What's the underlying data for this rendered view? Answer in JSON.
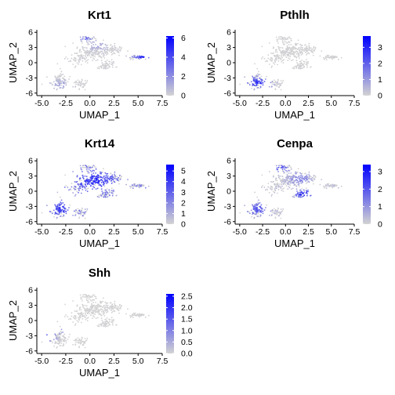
{
  "chart_data": [
    {
      "type": "scatter",
      "title": "Krt1",
      "xlabel": "UMAP_1",
      "ylabel": "UMAP_2",
      "xlim": [
        -5.5,
        7.5
      ],
      "ylim": [
        -6.5,
        6.5
      ],
      "xticks": [
        -5.0,
        -2.5,
        0.0,
        2.5,
        5.0,
        7.5
      ],
      "xtick_labels": [
        "-5.0",
        "-2.5",
        "0.0",
        "2.5",
        "5.0",
        "7.5"
      ],
      "yticks": [
        -6,
        -3,
        0,
        3,
        6
      ],
      "ytick_labels": [
        "-6",
        "-3",
        "0",
        "3",
        "6"
      ],
      "legend": {
        "type": "colorbar",
        "placement": "right",
        "min": 0,
        "max": 6.2,
        "ticks": [
          0,
          2,
          4,
          6
        ],
        "tick_labels": [
          "0",
          "2",
          "4",
          "6"
        ],
        "low_color": "#d3d3d3",
        "high_color": "#0000ff"
      },
      "expression_hotspots": [
        {
          "x": 5.5,
          "y": 1.2,
          "sx": 1.0,
          "sy": 0.35,
          "level": 5.5
        },
        {
          "x": 3.2,
          "y": 1.0,
          "sx": 0.6,
          "sy": 0.35,
          "level": 3.0
        },
        {
          "x": -0.5,
          "y": 4.8,
          "sx": 0.7,
          "sy": 0.5,
          "level": 3.5
        },
        {
          "x": -3.0,
          "y": -4.5,
          "sx": 1.0,
          "sy": 1.0,
          "level": 1.5
        },
        {
          "x": 0.8,
          "y": 3.5,
          "sx": 1.0,
          "sy": 1.0,
          "level": 1.5
        }
      ],
      "background_level": 0.3
    },
    {
      "type": "scatter",
      "title": "Pthlh",
      "xlabel": "UMAP_1",
      "ylabel": "UMAP_2",
      "xlim": [
        -5.5,
        7.5
      ],
      "ylim": [
        -6.5,
        6.5
      ],
      "xticks": [
        -5.0,
        -2.5,
        0.0,
        2.5,
        5.0,
        7.5
      ],
      "xtick_labels": [
        "-5.0",
        "-2.5",
        "0.0",
        "2.5",
        "5.0",
        "7.5"
      ],
      "yticks": [
        -6,
        -3,
        0,
        3,
        6
      ],
      "ytick_labels": [
        "-6",
        "-3",
        "0",
        "3",
        "6"
      ],
      "legend": {
        "type": "colorbar",
        "placement": "right",
        "min": 0,
        "max": 3.7,
        "ticks": [
          0,
          1,
          2,
          3
        ],
        "tick_labels": [
          "0",
          "1",
          "2",
          "3"
        ],
        "low_color": "#d3d3d3",
        "high_color": "#0000ff"
      },
      "expression_hotspots": [
        {
          "x": -3.0,
          "y": -4.0,
          "sx": 1.2,
          "sy": 1.2,
          "level": 2.8
        },
        {
          "x": -2.0,
          "y": -5.5,
          "sx": 0.8,
          "sy": 0.6,
          "level": 2.5
        }
      ],
      "background_level": 0.1
    },
    {
      "type": "scatter",
      "title": "Krt14",
      "xlabel": "UMAP_1",
      "ylabel": "UMAP_2",
      "xlim": [
        -5.5,
        7.5
      ],
      "ylim": [
        -6.5,
        6.5
      ],
      "xticks": [
        -5.0,
        -2.5,
        0.0,
        2.5,
        5.0,
        7.5
      ],
      "xtick_labels": [
        "-5.0",
        "-2.5",
        "0.0",
        "2.5",
        "5.0",
        "7.5"
      ],
      "yticks": [
        -6,
        -3,
        0,
        3,
        6
      ],
      "ytick_labels": [
        "-6",
        "-3",
        "0",
        "3",
        "6"
      ],
      "legend": {
        "type": "colorbar",
        "placement": "right",
        "min": 0,
        "max": 5.6,
        "ticks": [
          0,
          1,
          2,
          3,
          4,
          5
        ],
        "tick_labels": [
          "0",
          "1",
          "2",
          "3",
          "4",
          "5"
        ],
        "low_color": "#d3d3d3",
        "high_color": "#0000ff"
      },
      "expression_hotspots": [
        {
          "x": 0.5,
          "y": 2.0,
          "sx": 2.5,
          "sy": 2.5,
          "level": 4.5
        },
        {
          "x": -3.0,
          "y": -3.5,
          "sx": 1.5,
          "sy": 1.8,
          "level": 4.0
        }
      ],
      "background_level": 3.0
    },
    {
      "type": "scatter",
      "title": "Cenpa",
      "xlabel": "UMAP_1",
      "ylabel": "UMAP_2",
      "xlim": [
        -5.5,
        7.5
      ],
      "ylim": [
        -6.5,
        6.5
      ],
      "xticks": [
        -5.0,
        -2.5,
        0.0,
        2.5,
        5.0,
        7.5
      ],
      "xtick_labels": [
        "-5.0",
        "-2.5",
        "0.0",
        "2.5",
        "5.0",
        "7.5"
      ],
      "yticks": [
        -6,
        -3,
        0,
        3,
        6
      ],
      "ytick_labels": [
        "-6",
        "-3",
        "0",
        "3",
        "6"
      ],
      "legend": {
        "type": "colorbar",
        "placement": "right",
        "min": 0,
        "max": 3.4,
        "ticks": [
          0,
          1,
          2,
          3
        ],
        "tick_labels": [
          "0",
          "1",
          "2",
          "3"
        ],
        "low_color": "#d3d3d3",
        "high_color": "#0000ff"
      },
      "expression_hotspots": [
        {
          "x": 2.0,
          "y": -0.5,
          "sx": 1.0,
          "sy": 0.8,
          "level": 2.8
        },
        {
          "x": -3.0,
          "y": -3.5,
          "sx": 1.3,
          "sy": 1.5,
          "level": 2.0
        },
        {
          "x": -0.5,
          "y": 4.5,
          "sx": 0.8,
          "sy": 0.6,
          "level": 2.5
        },
        {
          "x": 1.5,
          "y": 2.5,
          "sx": 1.2,
          "sy": 1.2,
          "level": 1.5
        }
      ],
      "background_level": 0.5
    },
    {
      "type": "scatter",
      "title": "Shh",
      "xlabel": "UMAP_1",
      "ylabel": "UMAP_2",
      "xlim": [
        -5.5,
        7.5
      ],
      "ylim": [
        -6.5,
        6.5
      ],
      "xticks": [
        -5.0,
        -2.5,
        0.0,
        2.5,
        5.0,
        7.5
      ],
      "xtick_labels": [
        "-5.0",
        "-2.5",
        "0.0",
        "2.5",
        "5.0",
        "7.5"
      ],
      "yticks": [
        -6,
        -3,
        0,
        3,
        6
      ],
      "ytick_labels": [
        "-6",
        "-3",
        "0",
        "3",
        "6"
      ],
      "legend": {
        "type": "colorbar",
        "placement": "right",
        "min": 0,
        "max": 2.6,
        "ticks": [
          0.0,
          0.5,
          1.0,
          1.5,
          2.0,
          2.5
        ],
        "tick_labels": [
          "0.0",
          "0.5",
          "1.0",
          "1.5",
          "2.0",
          "2.5"
        ],
        "low_color": "#d3d3d3",
        "high_color": "#0000ff"
      },
      "expression_hotspots": [
        {
          "x": -4.3,
          "y": -3.0,
          "sx": 0.6,
          "sy": 0.8,
          "level": 2.3
        },
        {
          "x": -3.5,
          "y": -2.0,
          "sx": 0.6,
          "sy": 0.6,
          "level": 1.5
        }
      ],
      "background_level": 0.05
    }
  ]
}
